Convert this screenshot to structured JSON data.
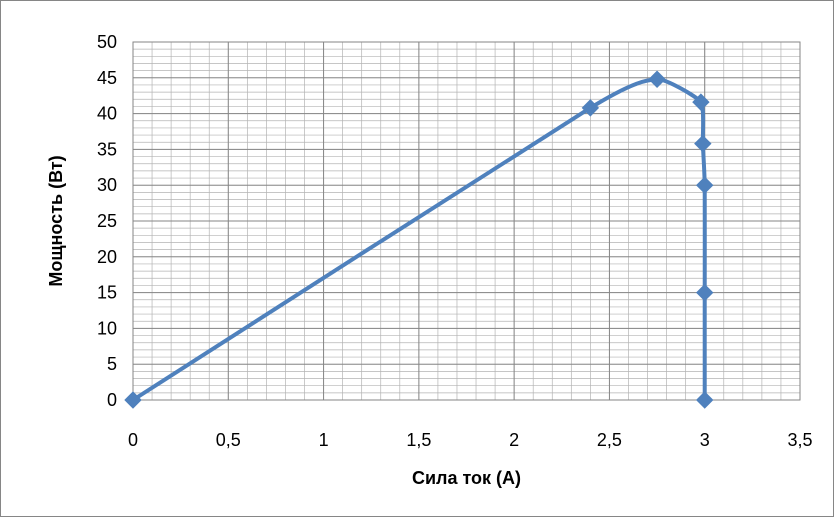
{
  "chart_data": {
    "type": "scatter",
    "title": "",
    "xlabel": "Сила ток (А)",
    "ylabel": "Мощность (Вт)",
    "xlim": [
      0,
      3.5
    ],
    "ylim": [
      0,
      50
    ],
    "x_ticks": [
      "0",
      "0,5",
      "1",
      "1,5",
      "2",
      "2,5",
      "3",
      "3,5"
    ],
    "y_ticks": [
      "0",
      "5",
      "10",
      "15",
      "20",
      "25",
      "30",
      "35",
      "40",
      "45",
      "50"
    ],
    "grid": "major and minor",
    "line_style": "smoothed line with diamond markers",
    "color": "#4F81BD",
    "series": [
      {
        "x": [
          0,
          2.4,
          2.75,
          2.98,
          2.99,
          3.0,
          3.0,
          3.0
        ],
        "y": [
          0,
          40.8,
          44.8,
          41.6,
          35.8,
          30,
          15,
          0
        ]
      }
    ]
  }
}
